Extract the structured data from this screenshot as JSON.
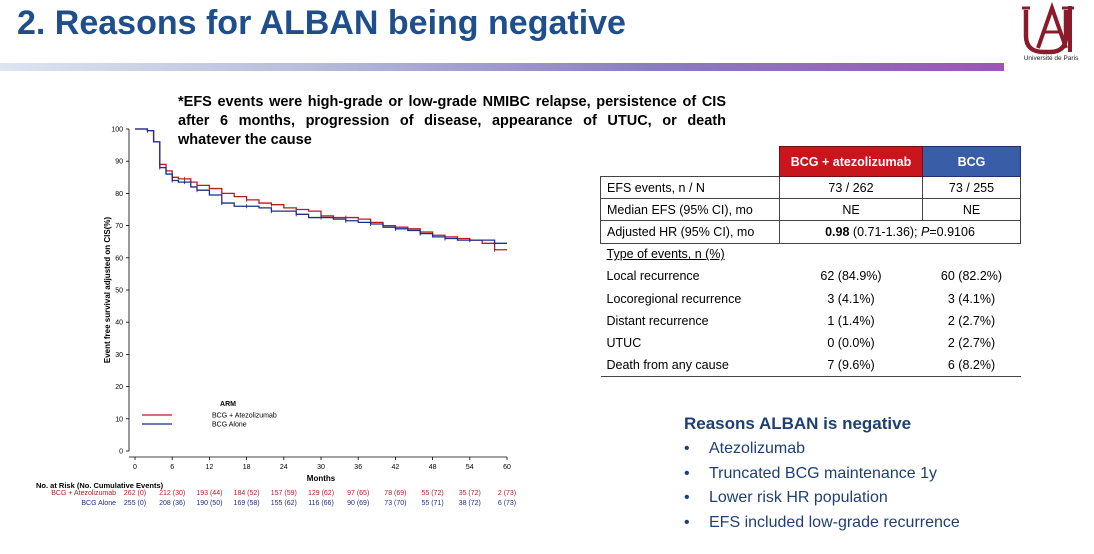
{
  "slide": {
    "title": "2. Reasons for ALBAN being negative",
    "logo_caption": "Université de Paris",
    "footnote": "*EFS events were high-grade or low-grade NMIBC relapse, persistence of CIS after 6 months, progression of disease, appearance of UTUC, or death whatever the cause"
  },
  "chart_data": {
    "type": "line",
    "title": "",
    "xlabel": "Months",
    "ylabel": "Event free survival adjusted on CIS(%)",
    "xlim": [
      0,
      60
    ],
    "ylim": [
      0,
      100
    ],
    "x_ticks": [
      0,
      6,
      12,
      18,
      24,
      30,
      36,
      42,
      48,
      54,
      60
    ],
    "y_ticks": [
      0,
      10,
      20,
      30,
      40,
      50,
      60,
      70,
      80,
      90,
      100
    ],
    "grid": false,
    "legend": {
      "title": "ARM",
      "position": "bottom-left"
    },
    "series": [
      {
        "name": "BCG + Atezolizumab",
        "color": "#b01f24",
        "x": [
          0,
          2,
          3,
          4,
          5,
          6,
          7,
          8,
          9,
          10,
          12,
          14,
          16,
          18,
          20,
          22,
          24,
          26,
          28,
          30,
          32,
          34,
          36,
          38,
          40,
          42,
          44,
          46,
          48,
          50,
          52,
          54,
          56,
          58,
          60
        ],
        "y": [
          100,
          99.5,
          96,
          89,
          87,
          85,
          84.5,
          84.5,
          83.5,
          82.5,
          81.5,
          80,
          79,
          78,
          77,
          76.5,
          75.5,
          75,
          74.5,
          73,
          72.5,
          72.5,
          72,
          71,
          70,
          69.5,
          69,
          68,
          67,
          66.5,
          66,
          65.5,
          64.5,
          62.5,
          62.5
        ]
      },
      {
        "name": "BCG Alone",
        "color": "#1e2e86",
        "x": [
          0,
          2,
          3,
          4,
          5,
          6,
          7,
          8,
          9,
          10,
          12,
          14,
          16,
          18,
          20,
          22,
          24,
          26,
          28,
          30,
          32,
          34,
          36,
          38,
          40,
          42,
          44,
          46,
          48,
          50,
          52,
          54,
          56,
          58,
          60
        ],
        "y": [
          100,
          99.5,
          96,
          88,
          86,
          84,
          83.5,
          83.5,
          82,
          81,
          79.5,
          77,
          76,
          76,
          75.5,
          74.5,
          74.5,
          73.5,
          72.5,
          72.5,
          72,
          71.5,
          71,
          70.5,
          69.5,
          69,
          68.5,
          67.5,
          66.5,
          66,
          65.5,
          65.5,
          65.5,
          64.5,
          64.5
        ]
      }
    ],
    "risk_table": {
      "header": "No. at Risk (No. Cumulative Events)",
      "times": [
        0,
        6,
        12,
        18,
        24,
        30,
        36,
        42,
        48,
        54,
        60
      ],
      "rows": [
        {
          "label": "BCG + Atezolizumab",
          "values": [
            "262 (0)",
            "212 (30)",
            "193 (44)",
            "184 (52)",
            "157 (59)",
            "129 (62)",
            "97 (65)",
            "78 (69)",
            "55 (72)",
            "35 (72)",
            "2 (73)"
          ]
        },
        {
          "label": "BCG Alone",
          "values": [
            "255 (0)",
            "208 (36)",
            "190 (50)",
            "169 (58)",
            "155 (62)",
            "116 (66)",
            "90 (69)",
            "73 (70)",
            "55 (71)",
            "38 (72)",
            "6 (73)"
          ]
        }
      ]
    }
  },
  "table": {
    "headers": [
      "BCG + atezolizumab",
      "BCG"
    ],
    "efs_events": {
      "label": "EFS events, n / N",
      "atz": "73 / 262",
      "bcg": "73 / 255"
    },
    "median_efs": {
      "label": "Median EFS (95% CI), mo",
      "atz": "NE",
      "bcg": "NE"
    },
    "adjusted_hr": {
      "label": "Adjusted HR (95% CI), mo",
      "value_bold": "0.98",
      "value_rest": " (0.71-1.36); ",
      "p_label": "P",
      "p_value": "=0.9106"
    },
    "type_of_events_label": "Type of events, n (%)",
    "event_rows": [
      {
        "label": "Local recurrence",
        "atz": "62 (84.9%)",
        "bcg": "60 (82.2%)"
      },
      {
        "label": "Locoregional recurrence",
        "atz": "3 (4.1%)",
        "bcg": "3 (4.1%)"
      },
      {
        "label": "Distant recurrence",
        "atz": "1 (1.4%)",
        "bcg": "2 (2.7%)"
      },
      {
        "label": "UTUC",
        "atz": "0 (0.0%)",
        "bcg": "2 (2.7%)"
      },
      {
        "label": "Death from any cause",
        "atz": "7 (9.6%)",
        "bcg": "6 (8.2%)"
      }
    ]
  },
  "reasons": {
    "title": "Reasons ALBAN is negative",
    "bullet": "•",
    "items": [
      "Atezolizumab",
      "Truncated BCG maintenance 1y",
      "Lower risk HR population",
      "EFS included low-grade recurrence"
    ]
  },
  "colors": {
    "title_blue": "#1f4e8c",
    "atz_red": "#c8161c",
    "bcg_blue": "#3a5da8",
    "logo_red": "#8b1a2b"
  }
}
